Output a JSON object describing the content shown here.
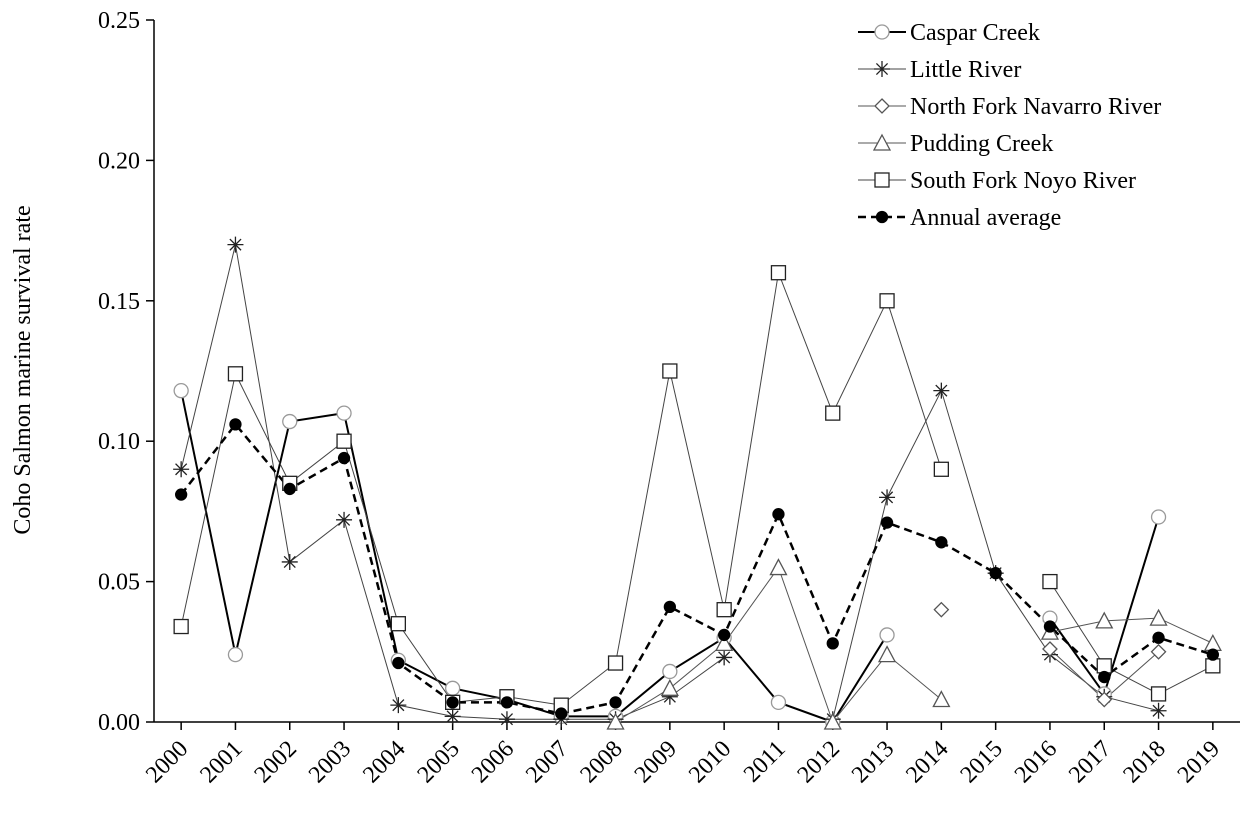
{
  "chart_data": {
    "type": "line",
    "y_label": "Coho Salmon marine survival rate",
    "x": [
      2000,
      2001,
      2002,
      2003,
      2004,
      2005,
      2006,
      2007,
      2008,
      2009,
      2010,
      2011,
      2012,
      2013,
      2014,
      2015,
      2016,
      2017,
      2018,
      2019
    ],
    "xlim": [
      1999.5,
      2019.5
    ],
    "xticks": [
      2000,
      2001,
      2002,
      2003,
      2004,
      2005,
      2006,
      2007,
      2008,
      2009,
      2010,
      2011,
      2012,
      2013,
      2014,
      2015,
      2016,
      2017,
      2018,
      2019
    ],
    "ylim": [
      0,
      0.25
    ],
    "yticks": [
      {
        "value": 0,
        "label": "0.00"
      },
      {
        "value": 0.05,
        "label": "0.05"
      },
      {
        "value": 0.1,
        "label": "0.10"
      },
      {
        "value": 0.15,
        "label": "0.15"
      },
      {
        "value": 0.2,
        "label": "0.20"
      },
      {
        "value": 0.25,
        "label": "0.25"
      }
    ],
    "legend": "upper right",
    "series": [
      {
        "name": "Caspar Creek",
        "color": "#000000",
        "marker": "circle",
        "marker_color": "#999999",
        "line_width": 2,
        "values": [
          0.118,
          0.024,
          0.107,
          0.11,
          0.022,
          0.012,
          0.008,
          0.002,
          0.002,
          0.018,
          0.03,
          0.007,
          0.0,
          0.031,
          null,
          null,
          0.037,
          0.01,
          0.073,
          null
        ]
      },
      {
        "name": "Little River",
        "color": "#444444",
        "marker": "asterisk",
        "marker_color": "#222222",
        "line_width": 1,
        "values": [
          0.09,
          0.17,
          0.057,
          0.072,
          0.006,
          0.002,
          0.001,
          0.001,
          0.001,
          0.009,
          0.023,
          null,
          0.001,
          0.08,
          0.118,
          0.053,
          0.024,
          0.009,
          0.004,
          null
        ]
      },
      {
        "name": "North Fork Navarro River",
        "color": "#555555",
        "marker": "diamond",
        "marker_color": "#555555",
        "line_width": 1,
        "values": [
          null,
          null,
          null,
          null,
          null,
          null,
          null,
          null,
          null,
          null,
          null,
          null,
          null,
          null,
          0.04,
          null,
          0.026,
          0.008,
          0.025,
          null
        ]
      },
      {
        "name": "Pudding Creek",
        "color": "#555555",
        "marker": "triangle",
        "marker_color": "#555555",
        "line_width": 1,
        "values": [
          null,
          null,
          null,
          null,
          null,
          null,
          null,
          null,
          0.0,
          0.012,
          0.028,
          0.055,
          0.0,
          0.024,
          0.008,
          null,
          0.032,
          0.036,
          0.037,
          0.028
        ]
      },
      {
        "name": "South Fork Noyo River",
        "color": "#444444",
        "marker": "square",
        "marker_color": "#222222",
        "line_width": 1,
        "values": [
          0.034,
          0.124,
          0.085,
          0.1,
          0.035,
          0.007,
          0.009,
          0.006,
          0.021,
          0.125,
          0.04,
          0.16,
          0.11,
          0.15,
          0.09,
          null,
          0.05,
          0.02,
          0.01,
          0.02
        ]
      },
      {
        "name": "Annual average",
        "color": "#000000",
        "marker": "dot",
        "marker_color": "#000000",
        "line_width": 2.5,
        "dashed": true,
        "values": [
          0.081,
          0.106,
          0.083,
          0.094,
          0.021,
          0.007,
          0.007,
          0.003,
          0.007,
          0.041,
          0.031,
          0.074,
          0.028,
          0.071,
          0.064,
          0.053,
          0.034,
          0.016,
          0.03,
          0.024
        ]
      }
    ]
  }
}
